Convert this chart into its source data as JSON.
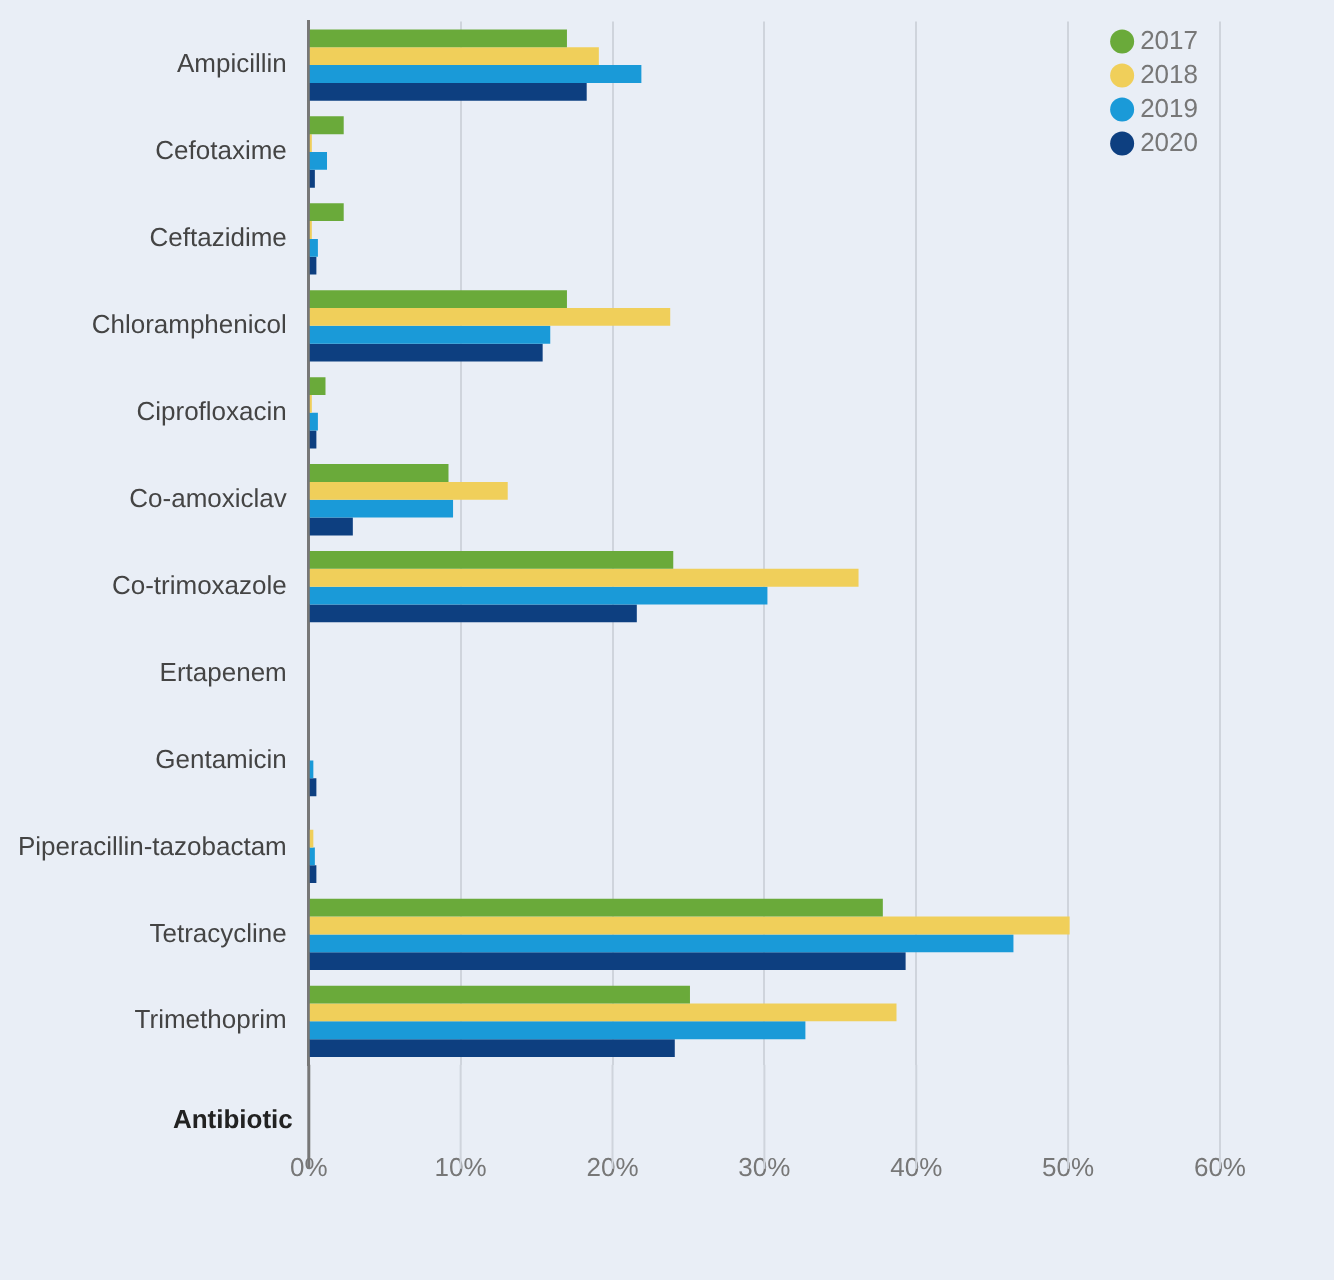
{
  "chart_data": {
    "type": "bar",
    "orientation": "horizontal",
    "ylabel": "Antibiotic",
    "categories": [
      "Ampicillin",
      "Cefotaxime",
      "Ceftazidime",
      "Chloramphenicol",
      "Ciprofloxacin",
      "Co-amoxiclav",
      "Co-trimoxazole",
      "Ertapenem",
      "Gentamicin",
      "Piperacillin-tazobactam",
      "Tetracycline",
      "Trimethoprim"
    ],
    "series": [
      {
        "name": "2017",
        "color": "#6aaa3a",
        "values": [
          17.0,
          2.3,
          2.3,
          17.0,
          1.1,
          9.2,
          24.0,
          0,
          0,
          0,
          37.8,
          25.1
        ]
      },
      {
        "name": "2018",
        "color": "#f0cf5a",
        "values": [
          19.1,
          0.2,
          0.2,
          23.8,
          0.2,
          13.1,
          36.2,
          0,
          0,
          0.3,
          50.1,
          38.7
        ]
      },
      {
        "name": "2019",
        "color": "#1a9ad8",
        "values": [
          21.9,
          1.2,
          0.6,
          15.9,
          0.6,
          9.5,
          30.2,
          0,
          0.3,
          0.4,
          46.4,
          32.7
        ]
      },
      {
        "name": "2020",
        "color": "#0d3f80",
        "values": [
          18.3,
          0.4,
          0.5,
          15.4,
          0.5,
          2.9,
          21.6,
          0,
          0.5,
          0.5,
          39.3,
          24.1
        ]
      }
    ],
    "xlim": [
      0,
      60
    ],
    "xticks": [
      {
        "value": 0,
        "label": "0%"
      },
      {
        "value": 10,
        "label": "10%"
      },
      {
        "value": 20,
        "label": "20%"
      },
      {
        "value": 30,
        "label": "30%"
      },
      {
        "value": 40,
        "label": "40%"
      },
      {
        "value": 50,
        "label": "50%"
      },
      {
        "value": 60,
        "label": "60%"
      }
    ],
    "grid": "x",
    "legend": "top right"
  }
}
